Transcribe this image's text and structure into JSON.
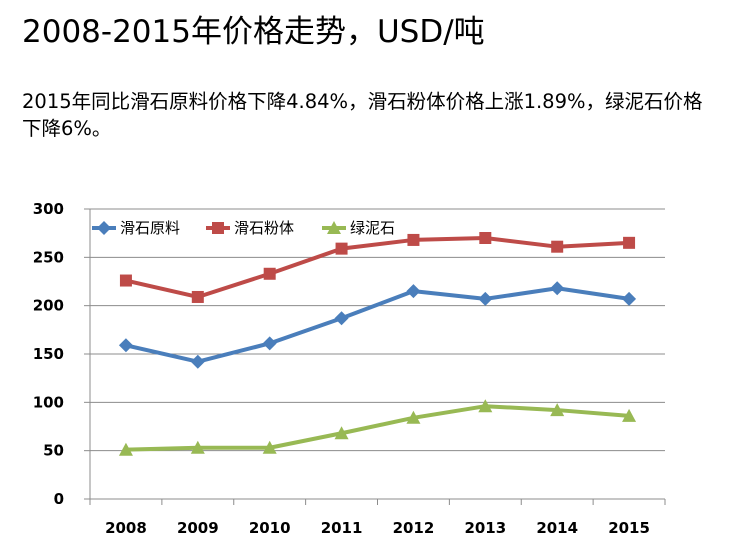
{
  "header": {
    "title": "2008-2015年价格走势，USD/吨",
    "subtitle": "2015年同比滑石原料价格下降4.84%，滑石粉体价格上涨1.89%，绿泥石价格下降6%。"
  },
  "chart_data": {
    "type": "line",
    "categories": [
      "2008",
      "2009",
      "2010",
      "2011",
      "2012",
      "2013",
      "2014",
      "2015"
    ],
    "series": [
      {
        "name": "滑石原料",
        "values": [
          159,
          142,
          161,
          187,
          215,
          207,
          218,
          207
        ],
        "color": "#4a7ebb",
        "marker": "diamond"
      },
      {
        "name": "滑石粉体",
        "values": [
          226,
          209,
          233,
          259,
          268,
          270,
          261,
          265
        ],
        "color": "#be4b48",
        "marker": "square"
      },
      {
        "name": "绿泥石",
        "values": [
          51,
          53,
          53,
          68,
          84,
          96,
          92,
          86
        ],
        "color": "#98b954",
        "marker": "triangle"
      }
    ],
    "ylim": [
      0,
      300
    ],
    "yticks": [
      "0",
      "50",
      "100",
      "150",
      "200",
      "250",
      "300"
    ],
    "grid": true,
    "legend_position": "top-left"
  }
}
